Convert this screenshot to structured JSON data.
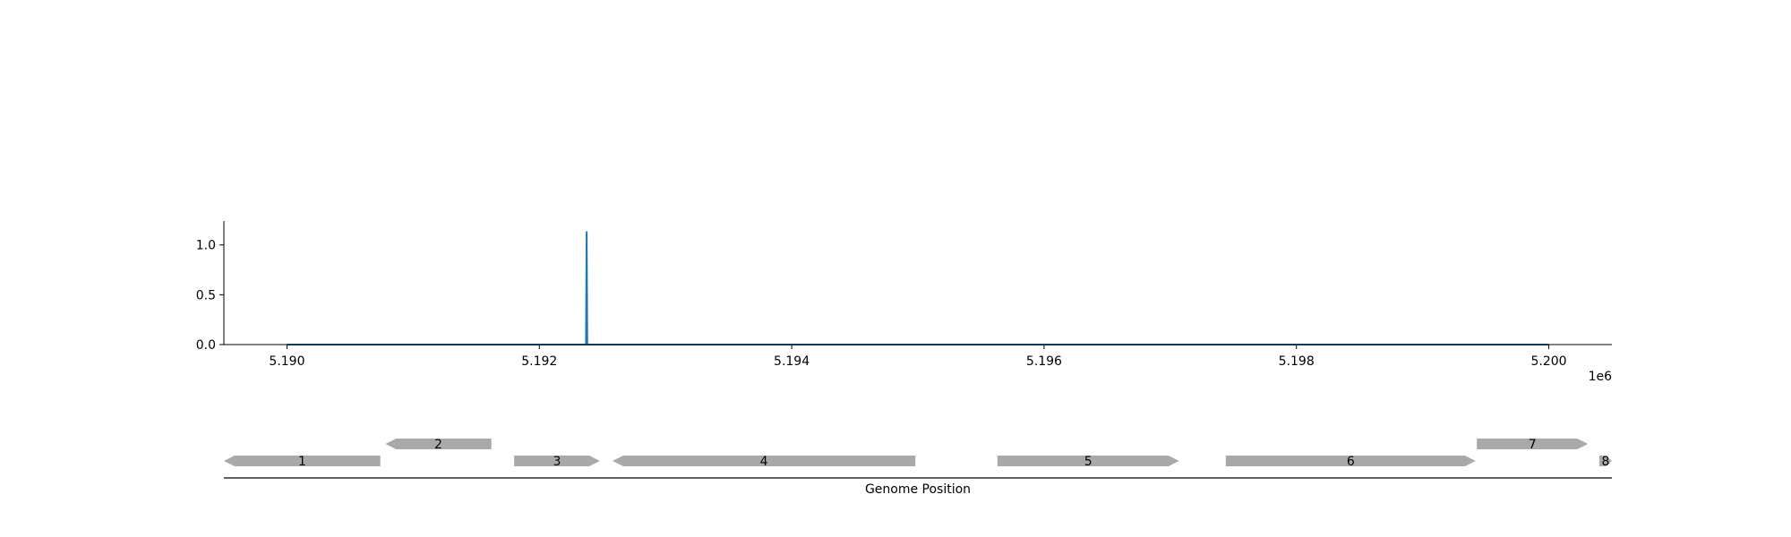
{
  "colors": {
    "signal": "#1f77b4",
    "gene": "#a9a9a9",
    "axis": "#000000",
    "background": "#ffffff"
  },
  "chart_data": [
    {
      "type": "line",
      "title": "",
      "xlabel": "",
      "ylabel": "",
      "x_offset_label": "1e6",
      "xlim": [
        5189500,
        5200500
      ],
      "ylim": [
        0,
        1.24
      ],
      "x_ticks": [
        5190000,
        5192000,
        5194000,
        5196000,
        5198000,
        5200000
      ],
      "x_tick_labels": [
        "5.190",
        "5.192",
        "5.194",
        "5.196",
        "5.198",
        "5.200"
      ],
      "y_ticks": [
        0.0,
        0.5,
        1.0
      ],
      "y_tick_labels": [
        "0.0",
        "0.5",
        "1.0"
      ],
      "grid": false,
      "series": [
        {
          "x": [
            5190000,
            5192370,
            5192375,
            5192380,
            5200000
          ],
          "y": [
            0,
            0,
            1.13,
            0,
            0
          ]
        }
      ]
    },
    {
      "type": "gene_track",
      "xlabel": "Genome Position",
      "xlim": [
        5189500,
        5200500
      ],
      "genes": [
        {
          "label": "1",
          "start": 5189500,
          "end": 5190740,
          "strand": "-",
          "row": 0
        },
        {
          "label": "2",
          "start": 5190780,
          "end": 5191620,
          "strand": "-",
          "row": 1
        },
        {
          "label": "3",
          "start": 5191800,
          "end": 5192480,
          "strand": "+",
          "row": 0
        },
        {
          "label": "4",
          "start": 5192580,
          "end": 5194980,
          "strand": "-",
          "row": 0
        },
        {
          "label": "5",
          "start": 5195630,
          "end": 5197070,
          "strand": "+",
          "row": 0
        },
        {
          "label": "6",
          "start": 5197440,
          "end": 5199420,
          "strand": "+",
          "row": 0
        },
        {
          "label": "7",
          "start": 5199430,
          "end": 5200310,
          "strand": "+",
          "row": 1
        },
        {
          "label": "8",
          "start": 5200400,
          "end": 5200500,
          "strand": "+",
          "row": 0
        }
      ]
    }
  ]
}
